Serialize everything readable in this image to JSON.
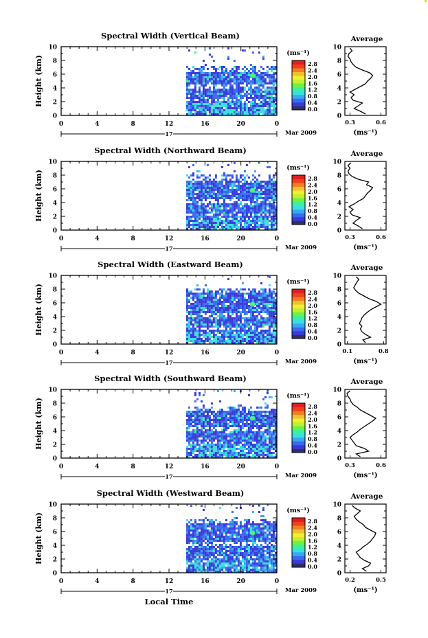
{
  "figure": {
    "xlabel": "Local Time",
    "ylabel": "Height (km)",
    "date_label": "Mar 2009",
    "day_label": "17",
    "x_ticks": [
      "0",
      "4",
      "8",
      "12",
      "16",
      "20",
      "0"
    ],
    "y_ticks": [
      "0",
      "2",
      "4",
      "6",
      "8",
      "10"
    ],
    "colorbar_unit": "(ms⁻¹)",
    "colorbar_ticks": [
      "0.0",
      "0.4",
      "0.8",
      "1.2",
      "1.6",
      "2.0",
      "2.4",
      "2.8"
    ],
    "profile_title": "Average",
    "profile_unit": "(ms⁻¹)",
    "colormap": [
      "#303060",
      "#3a3ad8",
      "#3a6af0",
      "#3aa8f0",
      "#3ae0e0",
      "#3af0a0",
      "#70f040",
      "#c0f030",
      "#f0f030",
      "#f0c030",
      "#f08020",
      "#f04020",
      "#e02020"
    ]
  },
  "chart_data": [
    {
      "type": "heatmap",
      "title": "Spectral Width (Vertical Beam)",
      "xlabel": "Local Time",
      "ylabel": "Height (km)",
      "xlim": [
        0,
        24
      ],
      "ylim": [
        0,
        10
      ],
      "data_extent_hours": [
        13.9,
        24.0
      ],
      "data_top_km": 6.5,
      "sparse_top_km": 10,
      "value_range": [
        0.0,
        2.8
      ],
      "profile": {
        "title": "Average",
        "xlabel": "(ms⁻¹)",
        "xticks": [
          "0.3",
          "0.6"
        ],
        "xlim": [
          0.25,
          0.65
        ],
        "heights": [
          0.2,
          0.6,
          1.0,
          1.4,
          1.8,
          2.2,
          2.6,
          3.0,
          3.4,
          3.8,
          4.2,
          4.6,
          5.0,
          5.4,
          5.8,
          6.2,
          6.6,
          7.0,
          7.4,
          7.8,
          8.2,
          8.6,
          9.0,
          9.4,
          9.8
        ],
        "values": [
          0.45,
          0.4,
          0.34,
          0.38,
          0.42,
          0.33,
          0.31,
          0.34,
          0.3,
          0.35,
          0.4,
          0.45,
          0.47,
          0.5,
          0.52,
          0.49,
          0.42,
          0.36,
          0.33,
          0.31,
          0.3,
          0.28,
          0.29,
          0.32,
          0.3
        ]
      }
    },
    {
      "type": "heatmap",
      "title": "Spectral Width (Northward Beam)",
      "xlabel": "Local Time",
      "ylabel": "Height (km)",
      "xlim": [
        0,
        24
      ],
      "ylim": [
        0,
        10
      ],
      "data_extent_hours": [
        13.9,
        24.0
      ],
      "data_top_km": 7.4,
      "sparse_top_km": 9.8,
      "value_range": [
        0.0,
        2.8
      ],
      "profile": {
        "title": "Average",
        "xlabel": "(ms⁻¹)",
        "xticks": [
          "0.3",
          "0.6"
        ],
        "xlim": [
          0.25,
          0.65
        ],
        "heights": [
          0.2,
          0.6,
          1.0,
          1.4,
          1.8,
          2.2,
          2.6,
          3.0,
          3.4,
          3.8,
          4.2,
          4.6,
          5.0,
          5.4,
          5.8,
          6.2,
          6.6,
          7.0,
          7.4,
          7.8,
          8.2,
          8.6,
          9.0,
          9.4,
          9.8
        ],
        "values": [
          0.42,
          0.38,
          0.33,
          0.36,
          0.4,
          0.32,
          0.3,
          0.33,
          0.29,
          0.34,
          0.38,
          0.43,
          0.45,
          0.47,
          0.5,
          0.52,
          0.46,
          0.48,
          0.38,
          0.32,
          0.29,
          0.28,
          0.3,
          0.28,
          0.31
        ]
      }
    },
    {
      "type": "heatmap",
      "title": "Spectral Width (Eastward Beam)",
      "xlabel": "Local Time",
      "ylabel": "Height (km)",
      "xlim": [
        0,
        24
      ],
      "ylim": [
        0,
        10
      ],
      "data_extent_hours": [
        13.9,
        24.0
      ],
      "data_top_km": 7.6,
      "sparse_top_km": 10,
      "value_range": [
        0.0,
        2.8
      ],
      "profile": {
        "title": "Average",
        "xlabel": "(ms⁻¹)",
        "xticks": [
          "0.1",
          "0.8"
        ],
        "xlim": [
          0.05,
          0.85
        ],
        "heights": [
          0.2,
          0.6,
          1.0,
          1.4,
          1.8,
          2.2,
          2.6,
          3.0,
          3.4,
          3.8,
          4.2,
          4.6,
          5.0,
          5.4,
          5.8,
          6.2,
          6.6,
          7.0,
          7.4,
          7.8,
          8.2,
          8.6,
          9.0,
          9.4,
          9.8
        ],
        "values": [
          0.45,
          0.4,
          0.55,
          0.45,
          0.38,
          0.35,
          0.38,
          0.33,
          0.36,
          0.38,
          0.42,
          0.48,
          0.55,
          0.65,
          0.75,
          0.66,
          0.52,
          0.42,
          0.32,
          0.26,
          0.22,
          0.25,
          0.28,
          0.32,
          0.27
        ]
      }
    },
    {
      "type": "heatmap",
      "title": "Spectral Width (Southward Beam)",
      "xlabel": "Local Time",
      "ylabel": "Height (km)",
      "xlim": [
        0,
        24
      ],
      "ylim": [
        0,
        10
      ],
      "data_extent_hours": [
        13.9,
        24.0
      ],
      "data_top_km": 7.0,
      "sparse_top_km": 10,
      "value_range": [
        0.0,
        2.8
      ],
      "profile": {
        "title": "Average",
        "xlabel": "(ms⁻¹)",
        "xticks": [
          "0.3",
          "0.6"
        ],
        "xlim": [
          0.25,
          0.65
        ],
        "heights": [
          0.2,
          0.6,
          1.0,
          1.4,
          1.8,
          2.2,
          2.6,
          3.0,
          3.4,
          3.8,
          4.2,
          4.6,
          5.0,
          5.4,
          5.8,
          6.2,
          6.6,
          7.0,
          7.4,
          7.8,
          8.2,
          8.6,
          9.0,
          9.4,
          9.8
        ],
        "values": [
          0.4,
          0.36,
          0.48,
          0.44,
          0.36,
          0.34,
          0.32,
          0.3,
          0.33,
          0.37,
          0.4,
          0.44,
          0.48,
          0.52,
          0.55,
          0.5,
          0.45,
          0.4,
          0.37,
          0.33,
          0.31,
          0.3,
          0.28,
          0.27,
          0.3
        ]
      }
    },
    {
      "type": "heatmap",
      "title": "Spectral Width (Westward Beam)",
      "xlabel": "Local Time",
      "ylabel": "Height (km)",
      "xlim": [
        0,
        24
      ],
      "ylim": [
        0,
        10
      ],
      "data_extent_hours": [
        13.9,
        24.0
      ],
      "data_top_km": 7.2,
      "sparse_top_km": 9.8,
      "value_range": [
        0.0,
        2.8
      ],
      "profile": {
        "title": "Average",
        "xlabel": "(ms⁻¹)",
        "xticks": [
          "0.2",
          "0.5"
        ],
        "xlim": [
          0.15,
          0.55
        ],
        "heights": [
          0.2,
          0.6,
          1.0,
          1.4,
          1.8,
          2.2,
          2.6,
          3.0,
          3.4,
          3.8,
          4.2,
          4.6,
          5.0,
          5.4,
          5.8,
          6.2,
          6.6,
          7.0,
          7.4,
          7.8,
          8.2,
          8.6,
          9.0,
          9.4,
          9.8
        ],
        "values": [
          0.36,
          0.32,
          0.38,
          0.4,
          0.34,
          0.3,
          0.28,
          0.26,
          0.3,
          0.33,
          0.37,
          0.4,
          0.42,
          0.44,
          0.45,
          0.4,
          0.35,
          0.33,
          0.29,
          0.26,
          0.24,
          0.27,
          0.3,
          0.25,
          0.22
        ]
      }
    }
  ]
}
